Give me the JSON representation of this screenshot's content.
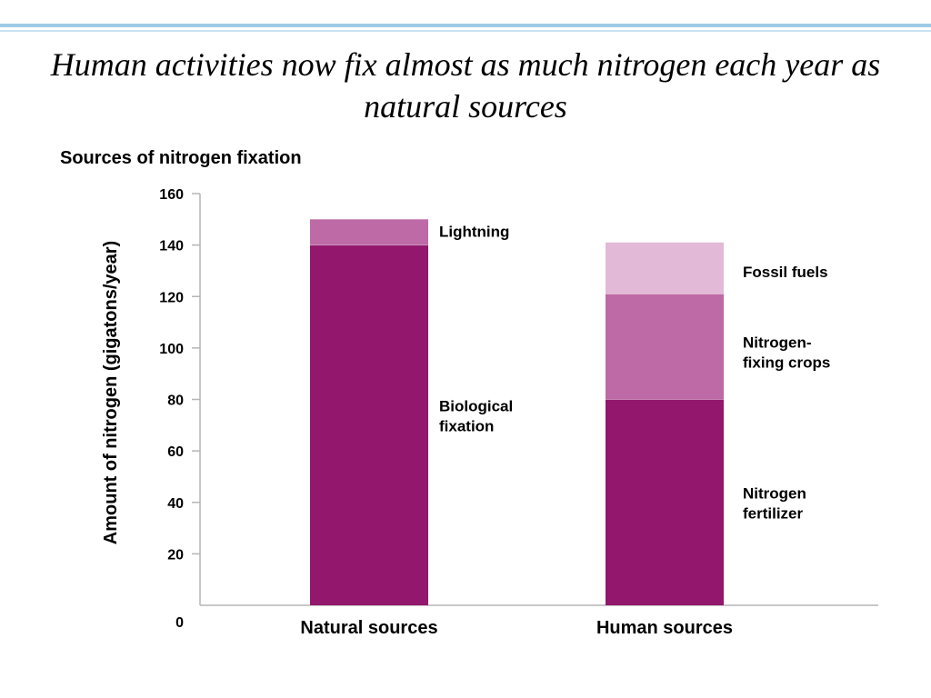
{
  "slide": {
    "title": "Human activities now fix almost as much nitrogen each year as natural sources"
  },
  "chart_data": {
    "type": "bar",
    "stacked": true,
    "title": "Sources of nitrogen fixation",
    "xlabel": "",
    "ylabel": "Amount of nitrogen (gigatons/year)",
    "ylim": [
      0,
      160
    ],
    "yticks": [
      0,
      20,
      40,
      60,
      80,
      100,
      120,
      140,
      160
    ],
    "categories": [
      "Natural sources",
      "Human sources"
    ],
    "grid": false,
    "legend": "none (segments labeled directly)",
    "bars": [
      {
        "category": "Natural sources",
        "segments": [
          {
            "label": [
              "Biological",
              "fixation"
            ],
            "value": 140,
            "color": "#92176d"
          },
          {
            "label": [
              "Lightning"
            ],
            "value": 10,
            "color": "#bd6aa6"
          }
        ]
      },
      {
        "category": "Human sources",
        "segments": [
          {
            "label": [
              "Nitrogen",
              "fertilizer"
            ],
            "value": 80,
            "color": "#92176d"
          },
          {
            "label": [
              "Nitrogen-",
              "fixing crops"
            ],
            "value": 41,
            "color": "#bd6aa6"
          },
          {
            "label": [
              "Fossil fuels"
            ],
            "value": 20,
            "color": "#e2b9d6"
          }
        ]
      }
    ]
  }
}
